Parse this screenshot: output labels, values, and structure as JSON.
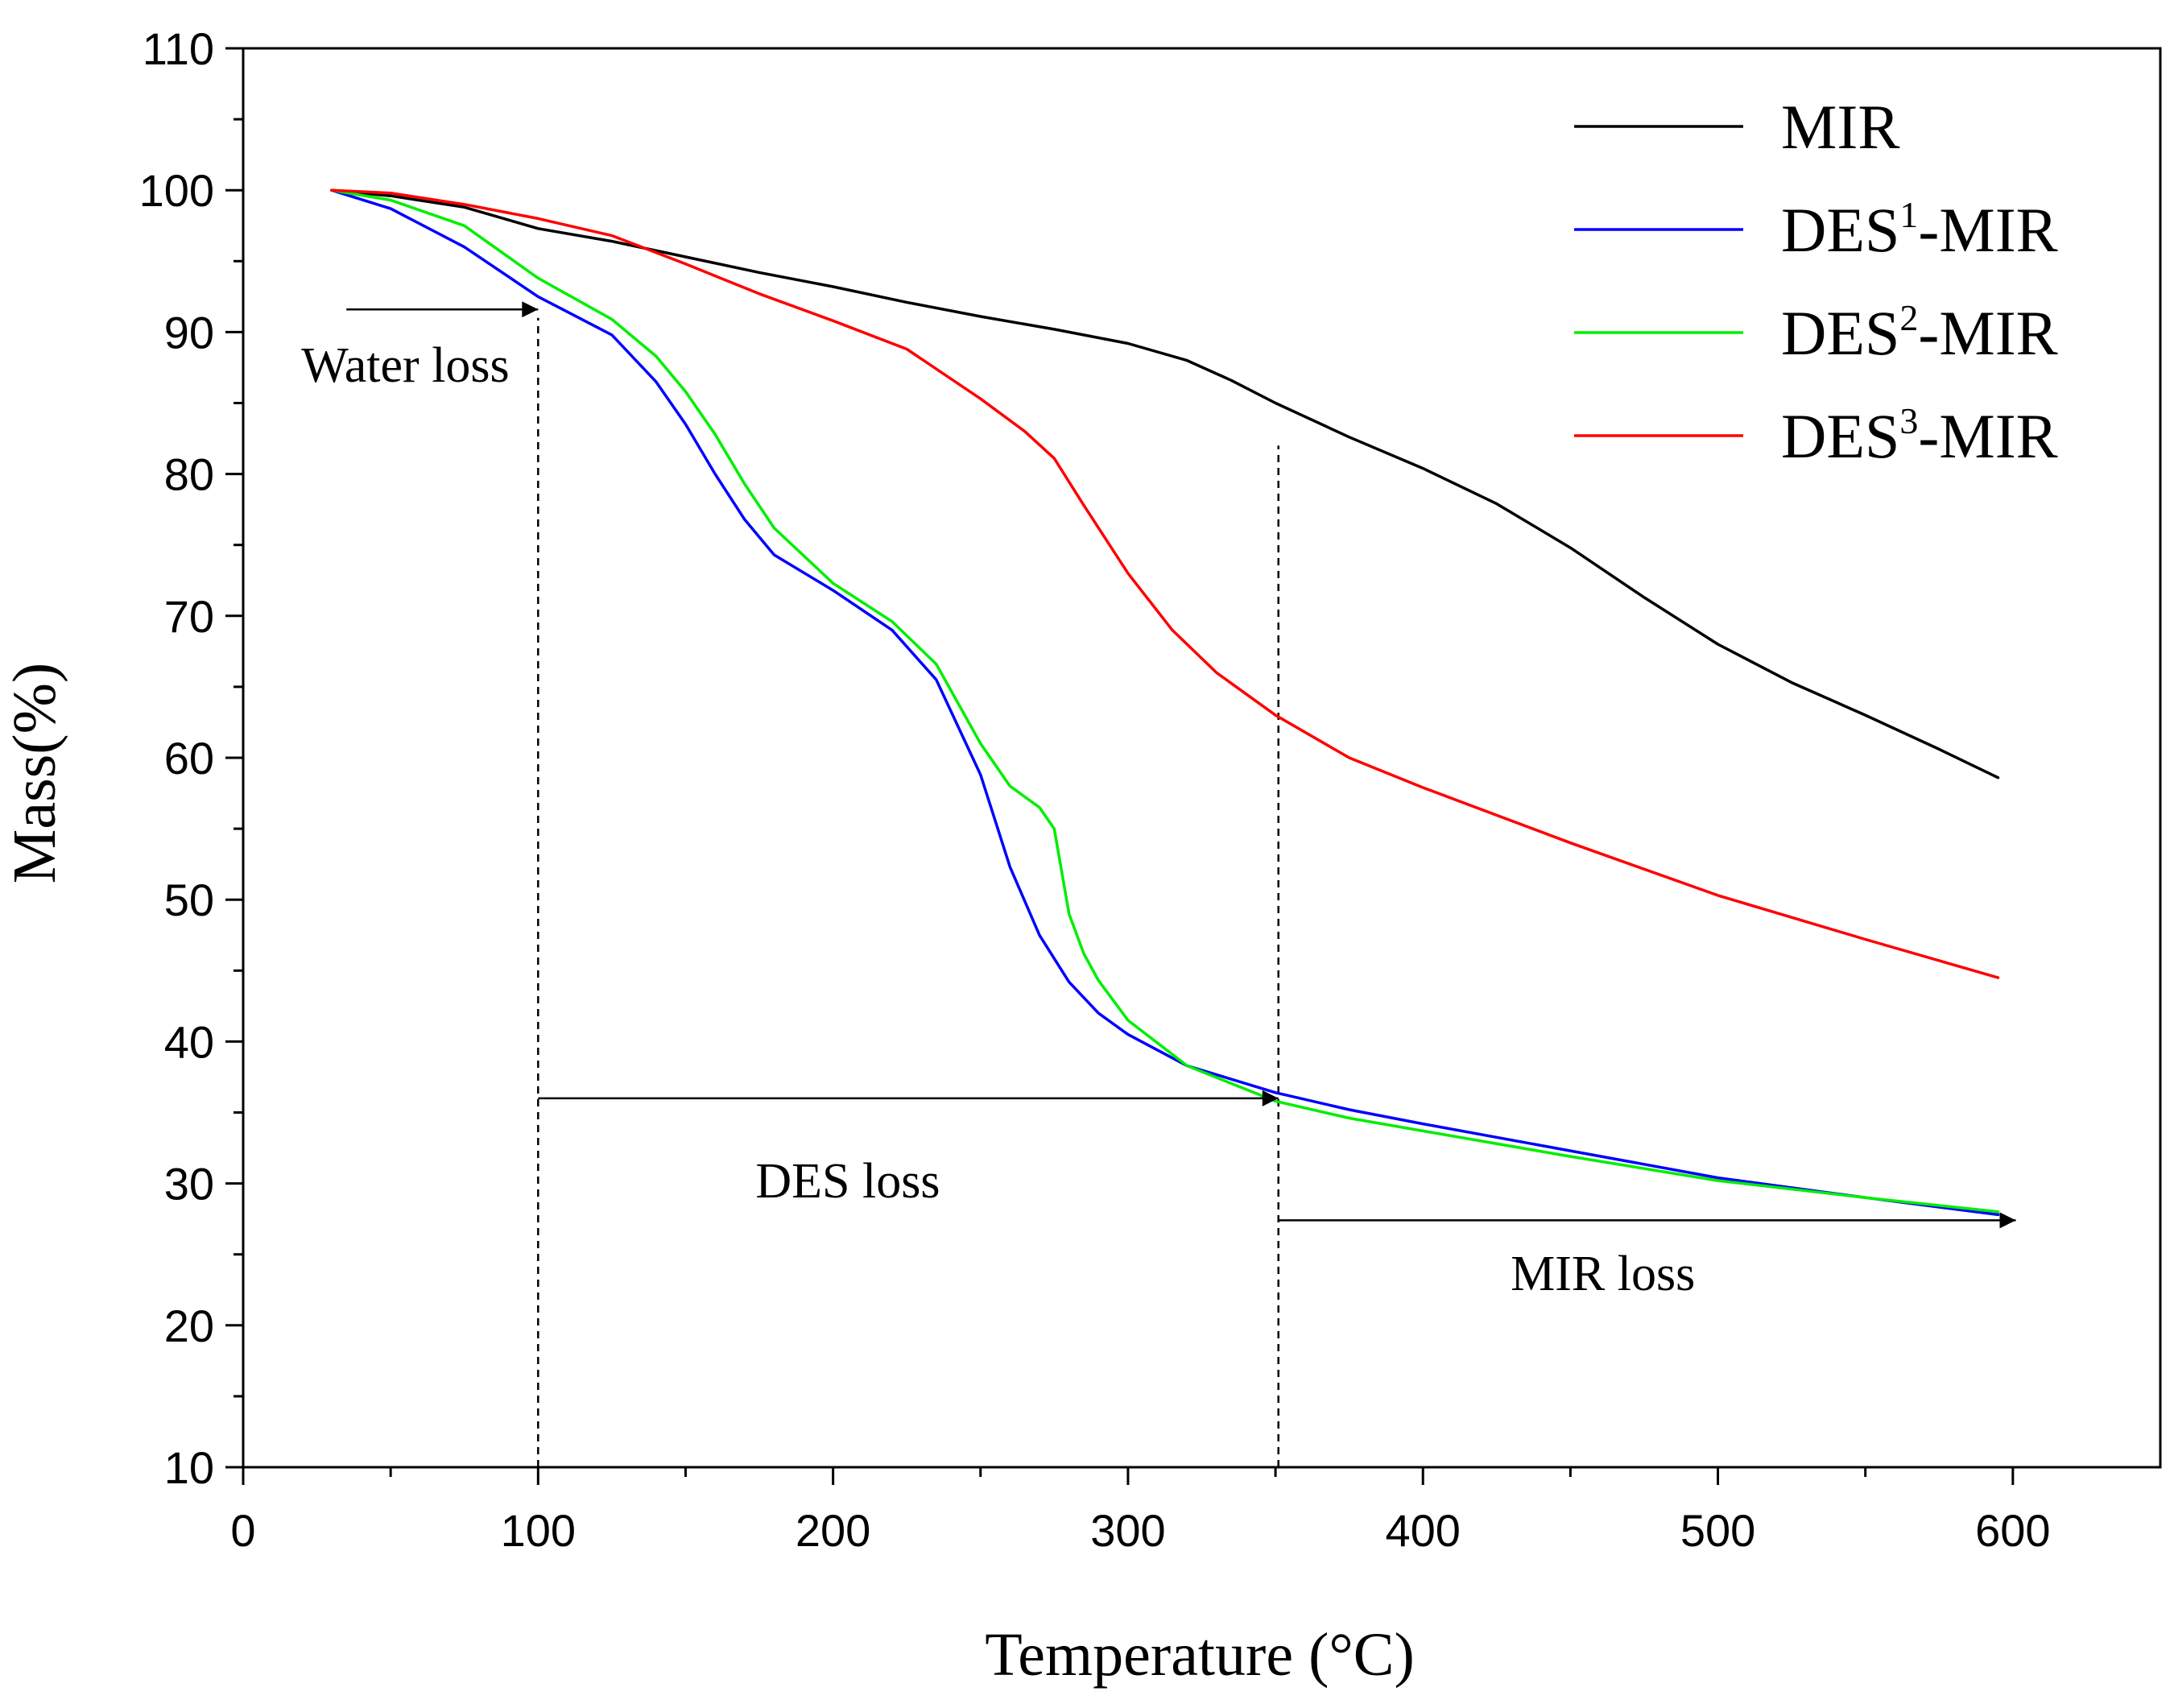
{
  "chart_data": {
    "type": "line",
    "xlabel": "Temperature (°C)",
    "ylabel": "Mass(%)",
    "xlim": [
      0,
      650
    ],
    "ylim": [
      10,
      110
    ],
    "x_ticks": [
      0,
      100,
      200,
      300,
      400,
      500,
      600
    ],
    "y_ticks": [
      10,
      20,
      30,
      40,
      50,
      60,
      70,
      80,
      90,
      100,
      110
    ],
    "legend_position": "top-right",
    "series": [
      {
        "name": "MIR",
        "color": "#000000",
        "x": [
          30,
          50,
          75,
          100,
          125,
          150,
          175,
          200,
          225,
          250,
          275,
          300,
          320,
          335,
          350,
          375,
          400,
          425,
          450,
          475,
          500,
          525,
          550,
          575,
          595
        ],
        "y": [
          100,
          99.6,
          98.8,
          97.3,
          96.4,
          95.3,
          94.2,
          93.2,
          92.1,
          91.1,
          90.2,
          89.2,
          88.0,
          86.6,
          85.0,
          82.6,
          80.4,
          77.9,
          74.8,
          71.3,
          68.0,
          65.3,
          63.0,
          60.6,
          58.6
        ]
      },
      {
        "name": "DES1-MIR",
        "sup": "1",
        "color": "#0000ff",
        "x": [
          30,
          50,
          75,
          100,
          125,
          140,
          150,
          160,
          170,
          180,
          200,
          220,
          235,
          250,
          260,
          270,
          280,
          290,
          300,
          320,
          350,
          375,
          400,
          450,
          500,
          550,
          595
        ],
        "y": [
          100,
          98.7,
          96.0,
          92.5,
          89.8,
          86.5,
          83.5,
          80.0,
          76.8,
          74.3,
          71.8,
          69.0,
          65.5,
          58.8,
          52.3,
          47.5,
          44.2,
          42.0,
          40.5,
          38.3,
          36.4,
          35.2,
          34.2,
          32.3,
          30.4,
          29.0,
          27.8
        ]
      },
      {
        "name": "DES2-MIR",
        "sup": "2",
        "color": "#00ee00",
        "x": [
          30,
          50,
          75,
          100,
          125,
          140,
          150,
          160,
          170,
          180,
          200,
          220,
          235,
          250,
          260,
          270,
          275,
          280,
          285,
          290,
          300,
          320,
          350,
          375,
          400,
          450,
          500,
          550,
          595
        ],
        "y": [
          100,
          99.3,
          97.5,
          93.8,
          90.9,
          88.3,
          85.8,
          82.8,
          79.3,
          76.2,
          72.3,
          69.6,
          66.6,
          61.0,
          58.0,
          56.5,
          55.0,
          49.0,
          46.2,
          44.3,
          41.5,
          38.3,
          35.8,
          34.6,
          33.7,
          31.9,
          30.2,
          29.0,
          28.0
        ]
      },
      {
        "name": "DES3-MIR",
        "sup": "3",
        "color": "#ff0000",
        "x": [
          30,
          50,
          75,
          100,
          125,
          150,
          175,
          200,
          225,
          250,
          265,
          275,
          285,
          300,
          315,
          330,
          350,
          375,
          400,
          450,
          500,
          550,
          595
        ],
        "y": [
          100,
          99.8,
          99.0,
          98.0,
          96.8,
          94.8,
          92.7,
          90.8,
          88.8,
          85.3,
          83.0,
          81.1,
          77.8,
          73.0,
          69.0,
          66.0,
          63.0,
          60.0,
          57.9,
          54.0,
          50.3,
          47.2,
          44.5
        ]
      }
    ],
    "guides": [
      {
        "type": "vline",
        "x": 100,
        "y_from": 10,
        "y_to": 91
      },
      {
        "type": "vline",
        "x": 351,
        "y_from": 10,
        "y_to": 82
      }
    ],
    "annotations": [
      {
        "text": "Water loss",
        "x": 55,
        "y": 86.5,
        "arrow": {
          "x1": 35,
          "y1": 91.6,
          "x2": 100,
          "y2": 91.6
        }
      },
      {
        "text": "DES loss",
        "x": 205,
        "y": 29,
        "arrow": {
          "x1": 100,
          "y1": 36,
          "x2": 351,
          "y2": 36
        }
      },
      {
        "text": "MIR loss",
        "x": 461,
        "y": 22.5,
        "arrow": {
          "x1": 351,
          "y1": 27.4,
          "x2": 601,
          "y2": 27.4
        }
      }
    ]
  }
}
